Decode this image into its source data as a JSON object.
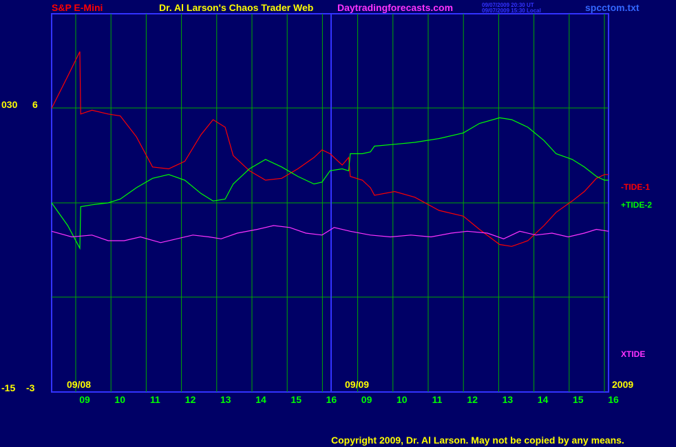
{
  "header": {
    "symbol": "S&P E-Mini",
    "title": "Dr. Al Larson's Chaos Trader Web",
    "site": "Daytradingforecasts.com",
    "timestamp_ut": "09/07/2009 20:30 UT",
    "timestamp_local": "09/07/2009 15:30 Local",
    "file": "spcctom.txt"
  },
  "footer": {
    "copyright": "Copyright 2009, Dr. Al Larson. May not be copied by any means."
  },
  "chart_data": {
    "type": "line",
    "left_axis": {
      "outer_labels": [
        "030",
        "-15"
      ],
      "inner_labels": [
        "6",
        "-3"
      ]
    },
    "date_labels": [
      "09/08",
      "09/09"
    ],
    "year_label": "2009",
    "x_ticks": [
      "09",
      "10",
      "11",
      "12",
      "13",
      "14",
      "15",
      "16",
      "09",
      "10",
      "11",
      "12",
      "13",
      "14",
      "15",
      "16"
    ],
    "series": [
      {
        "name": "-TIDE-1",
        "color": "#ff0000",
        "values": [
          [
            0.0,
            0.5
          ],
          [
            0.2,
            0.67
          ],
          [
            0.35,
            0.8
          ],
          [
            0.36,
            0.47
          ],
          [
            0.5,
            0.49
          ],
          [
            0.7,
            0.47
          ],
          [
            0.85,
            0.46
          ],
          [
            1.05,
            0.35
          ],
          [
            1.25,
            0.19
          ],
          [
            1.45,
            0.18
          ],
          [
            1.65,
            0.22
          ],
          [
            1.85,
            0.36
          ],
          [
            2.0,
            0.44
          ],
          [
            2.15,
            0.4
          ],
          [
            2.25,
            0.25
          ],
          [
            2.45,
            0.17
          ],
          [
            2.65,
            0.12
          ],
          [
            2.85,
            0.13
          ],
          [
            3.05,
            0.18
          ],
          [
            3.25,
            0.24
          ],
          [
            3.35,
            0.28
          ],
          [
            3.45,
            0.26
          ],
          [
            3.6,
            0.2
          ],
          [
            3.68,
            0.24
          ],
          [
            3.7,
            0.14
          ],
          [
            3.85,
            0.12
          ],
          [
            3.95,
            0.08
          ],
          [
            4.0,
            0.04
          ],
          [
            4.25,
            0.06
          ],
          [
            4.5,
            0.03
          ],
          [
            4.8,
            -0.04
          ],
          [
            5.1,
            -0.07
          ],
          [
            5.3,
            -0.14
          ],
          [
            5.55,
            -0.22
          ],
          [
            5.7,
            -0.23
          ],
          [
            5.9,
            -0.2
          ],
          [
            6.1,
            -0.12
          ],
          [
            6.25,
            -0.05
          ],
          [
            6.45,
            0.01
          ],
          [
            6.6,
            0.06
          ],
          [
            6.75,
            0.13
          ],
          [
            6.85,
            0.15
          ],
          [
            6.9,
            0.15
          ]
        ]
      },
      {
        "name": "+TIDE-2",
        "color": "#00ff00",
        "values": [
          [
            0.0,
            0.0
          ],
          [
            0.2,
            -0.12
          ],
          [
            0.35,
            -0.24
          ],
          [
            0.36,
            -0.02
          ],
          [
            0.5,
            -0.01
          ],
          [
            0.7,
            0.0
          ],
          [
            0.85,
            0.02
          ],
          [
            1.05,
            0.08
          ],
          [
            1.25,
            0.13
          ],
          [
            1.45,
            0.15
          ],
          [
            1.65,
            0.12
          ],
          [
            1.85,
            0.05
          ],
          [
            2.0,
            0.01
          ],
          [
            2.15,
            0.02
          ],
          [
            2.25,
            0.1
          ],
          [
            2.45,
            0.18
          ],
          [
            2.65,
            0.23
          ],
          [
            2.85,
            0.19
          ],
          [
            3.05,
            0.14
          ],
          [
            3.25,
            0.1
          ],
          [
            3.35,
            0.11
          ],
          [
            3.45,
            0.17
          ],
          [
            3.6,
            0.18
          ],
          [
            3.68,
            0.17
          ],
          [
            3.7,
            0.26
          ],
          [
            3.85,
            0.26
          ],
          [
            3.95,
            0.27
          ],
          [
            4.0,
            0.3
          ],
          [
            4.25,
            0.31
          ],
          [
            4.5,
            0.32
          ],
          [
            4.8,
            0.34
          ],
          [
            5.1,
            0.37
          ],
          [
            5.3,
            0.42
          ],
          [
            5.55,
            0.45
          ],
          [
            5.7,
            0.44
          ],
          [
            5.9,
            0.4
          ],
          [
            6.1,
            0.33
          ],
          [
            6.25,
            0.26
          ],
          [
            6.45,
            0.23
          ],
          [
            6.6,
            0.19
          ],
          [
            6.75,
            0.14
          ],
          [
            6.85,
            0.12
          ],
          [
            6.9,
            0.12
          ]
        ]
      },
      {
        "name": "XTIDE",
        "color": "#ff33ff",
        "values": [
          [
            0.0,
            -0.15
          ],
          [
            0.25,
            -0.18
          ],
          [
            0.5,
            -0.17
          ],
          [
            0.7,
            -0.2
          ],
          [
            0.9,
            -0.2
          ],
          [
            1.1,
            -0.18
          ],
          [
            1.35,
            -0.21
          ],
          [
            1.55,
            -0.19
          ],
          [
            1.75,
            -0.17
          ],
          [
            1.95,
            -0.18
          ],
          [
            2.1,
            -0.19
          ],
          [
            2.3,
            -0.16
          ],
          [
            2.55,
            -0.14
          ],
          [
            2.75,
            -0.12
          ],
          [
            2.95,
            -0.13
          ],
          [
            3.15,
            -0.16
          ],
          [
            3.35,
            -0.17
          ],
          [
            3.5,
            -0.13
          ],
          [
            3.7,
            -0.15
          ],
          [
            3.95,
            -0.17
          ],
          [
            4.2,
            -0.18
          ],
          [
            4.45,
            -0.17
          ],
          [
            4.7,
            -0.18
          ],
          [
            4.95,
            -0.16
          ],
          [
            5.15,
            -0.15
          ],
          [
            5.4,
            -0.16
          ],
          [
            5.6,
            -0.19
          ],
          [
            5.8,
            -0.15
          ],
          [
            6.0,
            -0.17
          ],
          [
            6.2,
            -0.16
          ],
          [
            6.4,
            -0.18
          ],
          [
            6.6,
            -0.16
          ],
          [
            6.75,
            -0.14
          ],
          [
            6.9,
            -0.15
          ]
        ]
      }
    ],
    "grid": true,
    "legend": "right"
  }
}
